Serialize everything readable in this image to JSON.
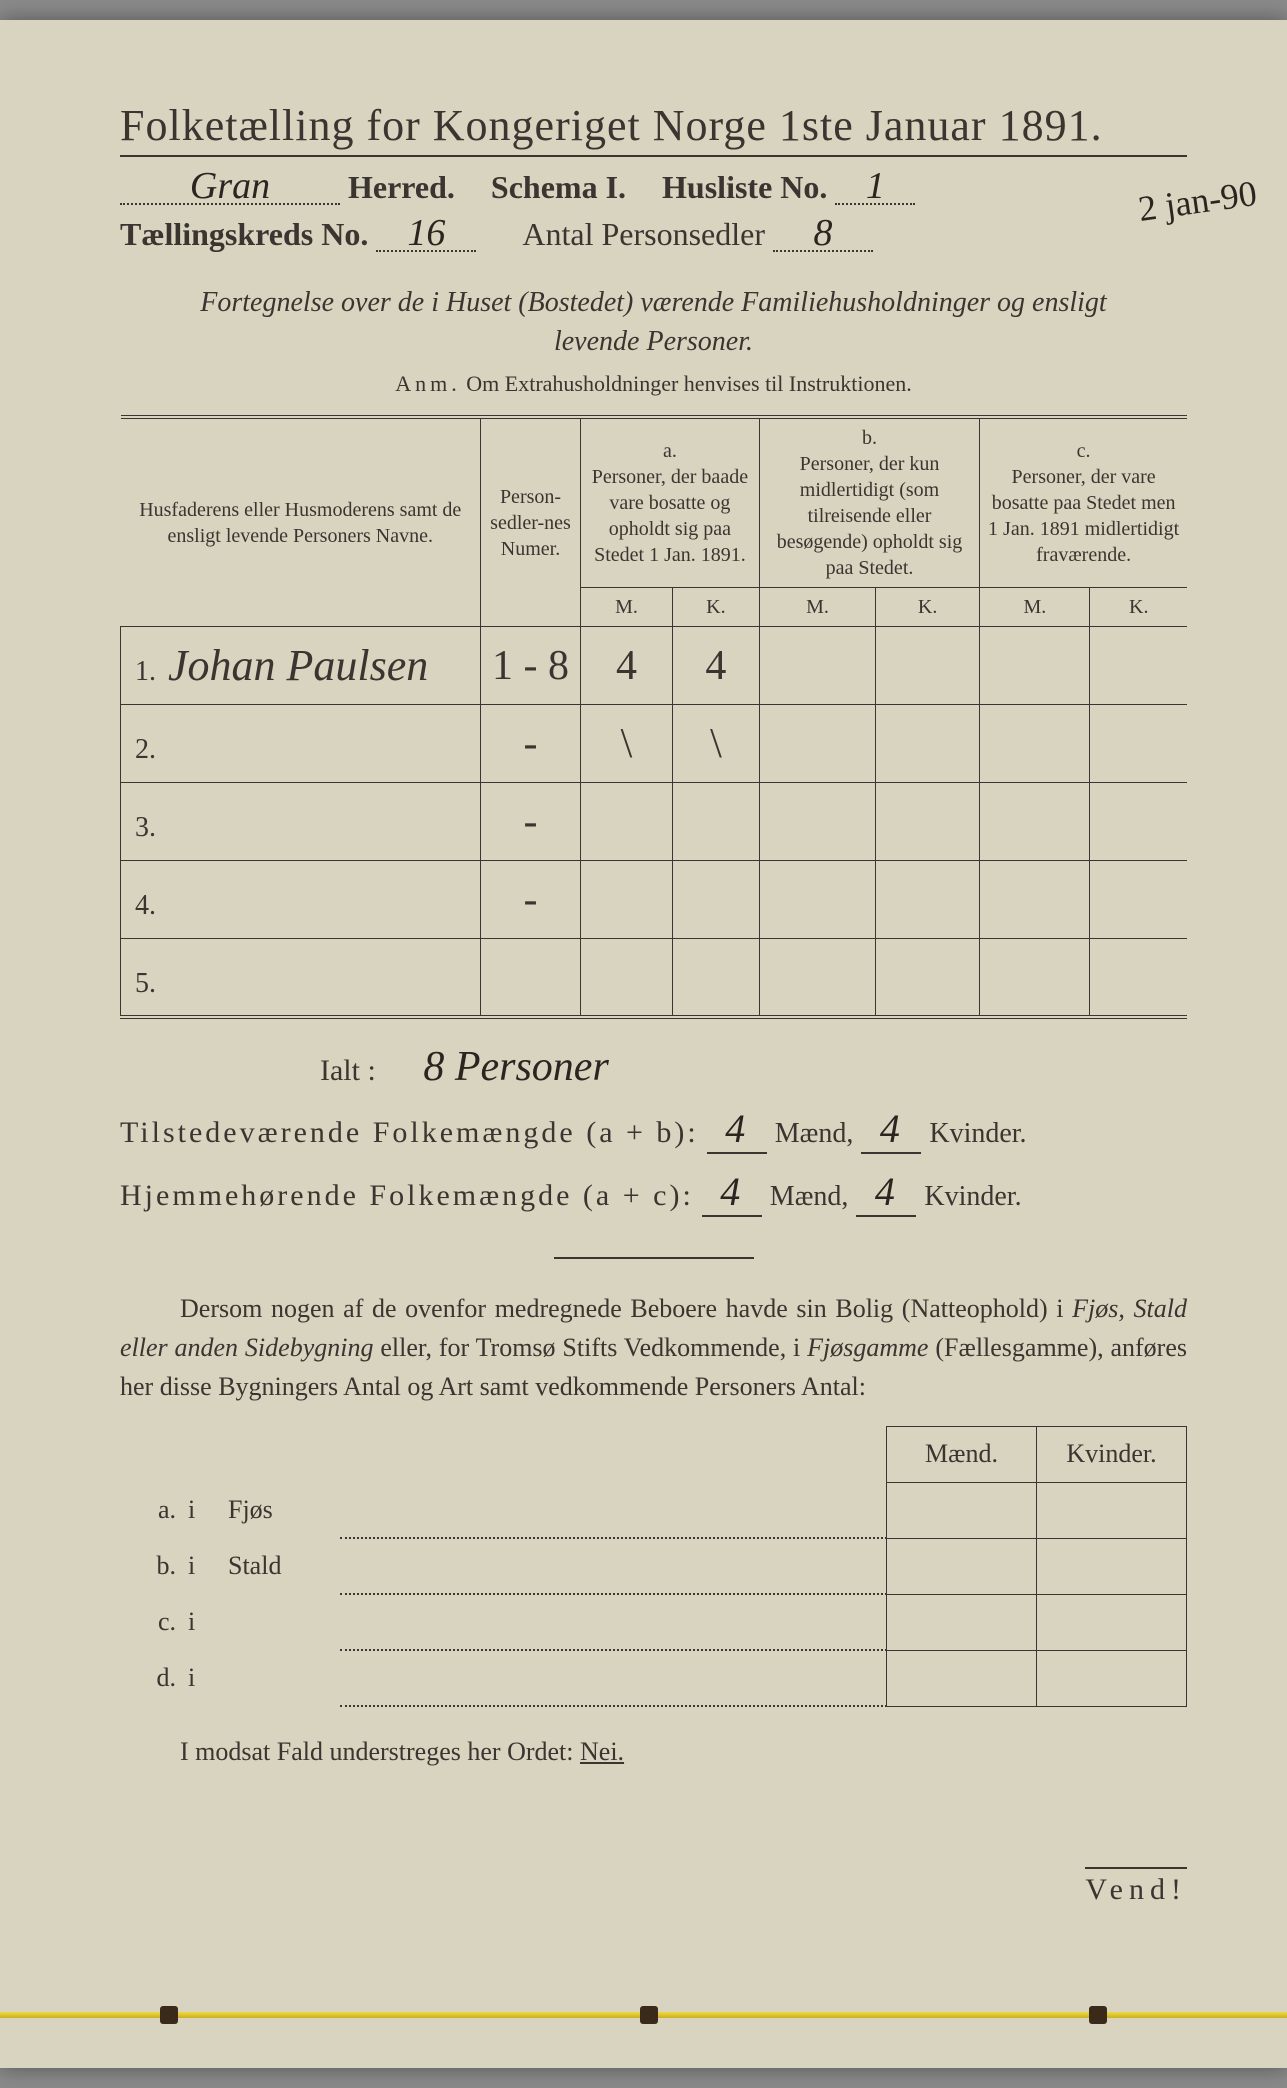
{
  "title": "Folketælling for Kongeriget Norge 1ste Januar 1891.",
  "header": {
    "herred_value": "Gran",
    "herred_label": "Herred.",
    "schema_label": "Schema I.",
    "husliste_label": "Husliste No.",
    "husliste_no": "1",
    "kreds_label": "Tællingskreds No.",
    "kreds_no": "16",
    "antal_label": "Antal Personsedler",
    "antal_value": "8",
    "margin_note": "2 jan-90"
  },
  "subtitle_line1": "Fortegnelse over de i Huset (Bostedet) værende Familiehusholdninger og ensligt",
  "subtitle_line2": "levende Personer.",
  "anm_label": "Anm.",
  "anm_text": "Om Extrahusholdninger henvises til Instruktionen.",
  "columns": {
    "names": "Husfaderens eller Husmoderens samt de ensligt levende Personers Navne.",
    "person_numer": "Person-sedler-nes Numer.",
    "a_label": "a.",
    "a_text": "Personer, der baade vare bosatte og opholdt sig paa Stedet 1 Jan. 1891.",
    "b_label": "b.",
    "b_text": "Personer, der kun midlertidigt (som tilreisende eller besøgende) opholdt sig paa Stedet.",
    "c_label": "c.",
    "c_text": "Personer, der vare bosatte paa Stedet men 1 Jan. 1891 midlertidigt fraværende.",
    "m": "M.",
    "k": "K."
  },
  "rows": [
    {
      "num": "1.",
      "name": "Johan Paulsen",
      "person_numer": "1 - 8",
      "a_m": "4",
      "a_k": "4",
      "b_m": "",
      "b_k": "",
      "c_m": "",
      "c_k": ""
    },
    {
      "num": "2.",
      "name": "",
      "person_numer": "-",
      "a_m": "\\",
      "a_k": "\\",
      "b_m": "",
      "b_k": "",
      "c_m": "",
      "c_k": ""
    },
    {
      "num": "3.",
      "name": "",
      "person_numer": "-",
      "a_m": "",
      "a_k": "",
      "b_m": "",
      "b_k": "",
      "c_m": "",
      "c_k": ""
    },
    {
      "num": "4.",
      "name": "",
      "person_numer": "-",
      "a_m": "",
      "a_k": "",
      "b_m": "",
      "b_k": "",
      "c_m": "",
      "c_k": ""
    },
    {
      "num": "5.",
      "name": "",
      "person_numer": "",
      "a_m": "",
      "a_k": "",
      "b_m": "",
      "b_k": "",
      "c_m": "",
      "c_k": ""
    }
  ],
  "ialt_label": "Ialt :",
  "ialt_value": "8 Personer",
  "present": {
    "label": "Tilstedeværende Folkemængde (a + b):",
    "m": "4",
    "m_label": "Mænd,",
    "k": "4",
    "k_label": "Kvinder."
  },
  "home": {
    "label": "Hjemmehørende Folkemængde (a + c):",
    "m": "4",
    "m_label": "Mænd,",
    "k": "4",
    "k_label": "Kvinder."
  },
  "para_text_1": "Dersom nogen af de ovenfor medregnede Beboere havde sin Bolig (Natteophold) i ",
  "para_it_1": "Fjøs, Stald eller anden Sidebygning",
  "para_text_2": " eller, for Tromsø Stifts Vedkommende, i ",
  "para_it_2": "Fjøsgamme",
  "para_text_3": " (Fællesgamme), anføres her disse Bygningers Antal og Art samt vedkommende Personers Antal:",
  "bldg_headers": {
    "maend": "Mænd.",
    "kvinder": "Kvinder."
  },
  "bldg_rows": [
    {
      "letter": "a.",
      "i": "i",
      "label": "Fjøs"
    },
    {
      "letter": "b.",
      "i": "i",
      "label": "Stald"
    },
    {
      "letter": "c.",
      "i": "i",
      "label": ""
    },
    {
      "letter": "d.",
      "i": "i",
      "label": ""
    }
  ],
  "nei_text": "I modsat Fald understreges her Ordet: ",
  "nei_word": "Nei.",
  "vend": "Vend!",
  "colors": {
    "paper": "#d8d4c0",
    "ink": "#3a3530",
    "handwriting": "#2a2520",
    "thread": "#f0d840"
  }
}
